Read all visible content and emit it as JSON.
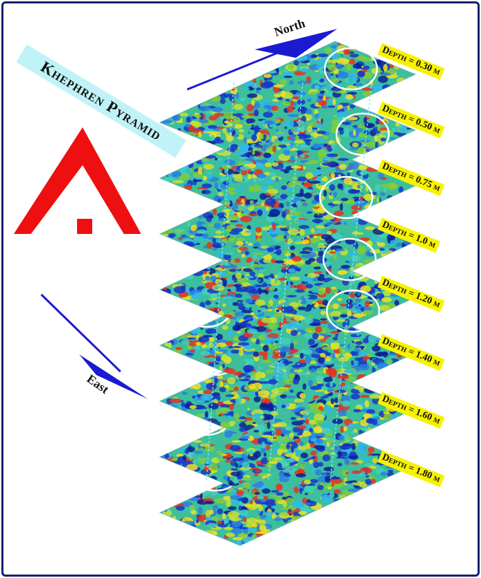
{
  "title": "Khephren Pyramid",
  "directions": {
    "north": "North",
    "east": "East"
  },
  "slices": [
    {
      "label": "Depth = 0.30 m"
    },
    {
      "label": "Depth = 0.50 m"
    },
    {
      "label": "Depth = 0.75 m"
    },
    {
      "label": "Depth = 1.0 m"
    },
    {
      "label": "Depth = 1.20 m"
    },
    {
      "label": "Depth = 1.40 m"
    },
    {
      "label": "Depth = 1.60 m"
    },
    {
      "label": "Depth = 1.80 m"
    }
  ]
}
